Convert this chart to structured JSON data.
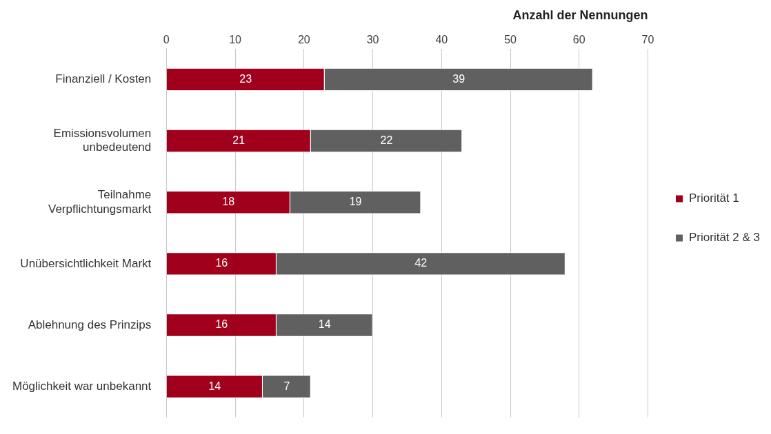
{
  "chart_data": {
    "type": "bar",
    "orientation": "horizontal",
    "stacked": true,
    "xlabel": "Anzahl der Nennungen",
    "categories": [
      "Finanziell / Kosten",
      "Emissionsvolumen unbedeutend",
      "Teilnahme Verpflichtungsmarkt",
      "Unübersichtlichkeit Markt",
      "Ablehnung des Prinzips",
      "Möglichkeit war unbekannt"
    ],
    "series": [
      {
        "name": "Priorität 1",
        "color": "#a0001c",
        "values": [
          23,
          21,
          18,
          16,
          16,
          14
        ]
      },
      {
        "name": "Priorität 2 & 3",
        "color": "#606060",
        "values": [
          39,
          22,
          19,
          42,
          14,
          7
        ]
      }
    ],
    "xlim": [
      0,
      70
    ],
    "xticks": [
      0,
      10,
      20,
      30,
      40,
      50,
      60,
      70
    ],
    "grid": "x",
    "legend": "right",
    "data_labels": true
  }
}
